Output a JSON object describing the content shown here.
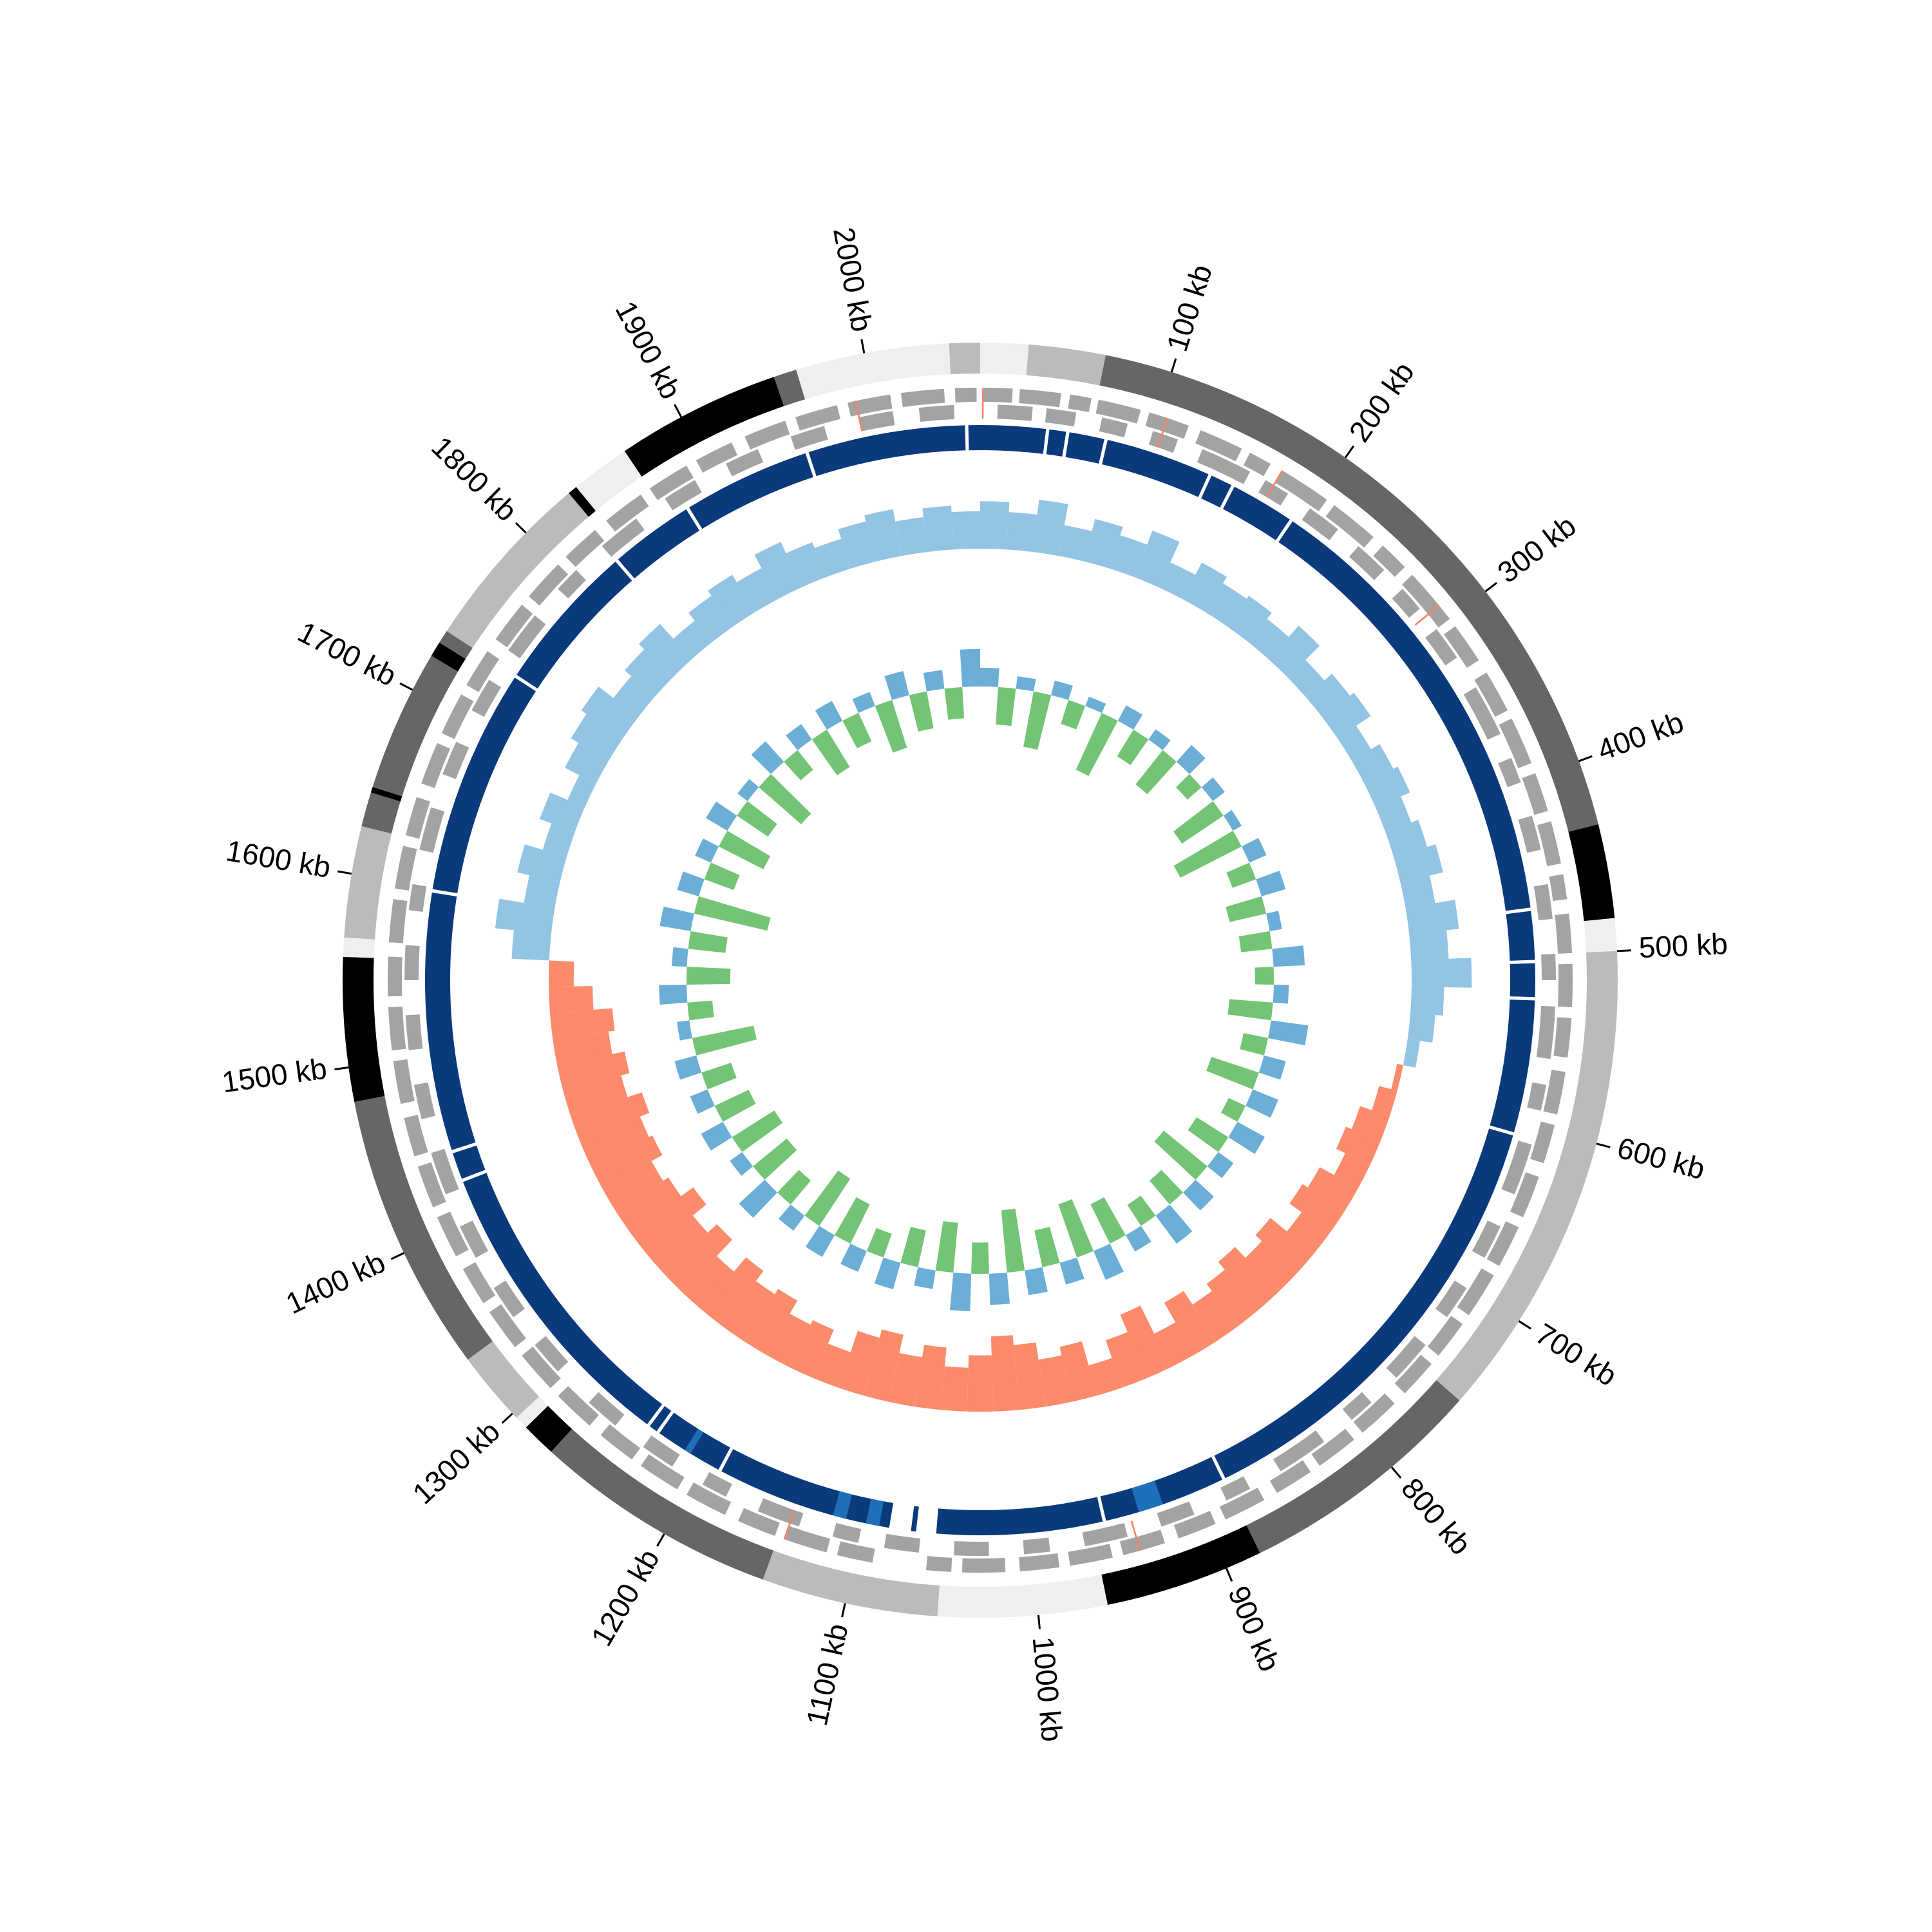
{
  "chart_data": {
    "type": "circos",
    "xlim": [
      0,
      2060
    ],
    "xticks": [
      {
        "value": 100,
        "label": "100 kb"
      },
      {
        "value": 200,
        "label": "200 kb"
      },
      {
        "value": 300,
        "label": "300 kb"
      },
      {
        "value": 400,
        "label": "400 kb"
      },
      {
        "value": 500,
        "label": "500 kb"
      },
      {
        "value": 600,
        "label": "600 kb"
      },
      {
        "value": 700,
        "label": "700 kb"
      },
      {
        "value": 800,
        "label": "800 kb"
      },
      {
        "value": 900,
        "label": "900 kb"
      },
      {
        "value": 1000,
        "label": "1000 kb"
      },
      {
        "value": 1100,
        "label": "1100 kb"
      },
      {
        "value": 1200,
        "label": "1200 kb"
      },
      {
        "value": 1300,
        "label": "1300 kb"
      },
      {
        "value": 1400,
        "label": "1400 kb"
      },
      {
        "value": 1500,
        "label": "1500 kb"
      },
      {
        "value": 1600,
        "label": "1600 kb"
      },
      {
        "value": 1700,
        "label": "1700 kb"
      },
      {
        "value": 1800,
        "label": "1800 kb"
      },
      {
        "value": 1900,
        "label": "1900 kb"
      },
      {
        "value": 2000,
        "label": "2000 kb"
      }
    ],
    "ideogram": [
      {
        "start": 0,
        "end": 25,
        "color": "#efefef"
      },
      {
        "start": 25,
        "end": 65,
        "color": "#bbbbbb"
      },
      {
        "start": 65,
        "end": 434,
        "color": "#666666"
      },
      {
        "start": 434,
        "end": 483,
        "color": "#000000"
      },
      {
        "start": 483,
        "end": 500,
        "color": "#efefef"
      },
      {
        "start": 500,
        "end": 751,
        "color": "#bbbbbb"
      },
      {
        "start": 751,
        "end": 881,
        "color": "#666666"
      },
      {
        "start": 881,
        "end": 964,
        "color": "#000000"
      },
      {
        "start": 964,
        "end": 1052,
        "color": "#efefef"
      },
      {
        "start": 1052,
        "end": 1144,
        "color": "#bbbbbb"
      },
      {
        "start": 1144,
        "end": 1272,
        "color": "#666666"
      },
      {
        "start": 1272,
        "end": 1290,
        "color": "#000000"
      },
      {
        "start": 1290,
        "end": 1297,
        "color": "#efefef"
      },
      {
        "start": 1297,
        "end": 1336,
        "color": "#bbbbbb"
      },
      {
        "start": 1336,
        "end": 1482,
        "color": "#666666"
      },
      {
        "start": 1482,
        "end": 1557,
        "color": "#000000"
      },
      {
        "start": 1557,
        "end": 1567,
        "color": "#efefef"
      },
      {
        "start": 1567,
        "end": 1625,
        "color": "#bbbbbb"
      },
      {
        "start": 1625,
        "end": 1643,
        "color": "#666666"
      },
      {
        "start": 1643,
        "end": 1646,
        "color": "#000000"
      },
      {
        "start": 1646,
        "end": 1720,
        "color": "#666666"
      },
      {
        "start": 1720,
        "end": 1728,
        "color": "#000000"
      },
      {
        "start": 1728,
        "end": 1735,
        "color": "#666666"
      },
      {
        "start": 1735,
        "end": 1830,
        "color": "#bbbbbb"
      },
      {
        "start": 1830,
        "end": 1835,
        "color": "#000000"
      },
      {
        "start": 1835,
        "end": 1866,
        "color": "#efefef"
      },
      {
        "start": 1866,
        "end": 1952,
        "color": "#000000"
      },
      {
        "start": 1952,
        "end": 1964,
        "color": "#666666"
      },
      {
        "start": 1964,
        "end": 2044,
        "color": "#efefef"
      },
      {
        "start": 2044,
        "end": 2060,
        "color": "#bbbbbb"
      }
    ],
    "genes_forward": {
      "color": "#a3a3a3",
      "blocks": [
        [
          2,
          18
        ],
        [
          22,
          45
        ],
        [
          50,
          62
        ],
        [
          66,
          90
        ],
        [
          95,
          118
        ],
        [
          125,
          150
        ],
        [
          155,
          168
        ],
        [
          175,
          205
        ],
        [
          210,
          238
        ],
        [
          245,
          262
        ],
        [
          268,
          300
        ],
        [
          305,
          328
        ],
        [
          336,
          360
        ],
        [
          365,
          392
        ],
        [
          398,
          420
        ],
        [
          426,
          450
        ],
        [
          456,
          470
        ],
        [
          478,
          500
        ],
        [
          506,
          530
        ],
        [
          536,
          558
        ],
        [
          566,
          590
        ],
        [
          596,
          618
        ],
        [
          626,
          650
        ],
        [
          656,
          680
        ],
        [
          686,
          712
        ],
        [
          718,
          740
        ],
        [
          746,
          768
        ],
        [
          776,
          800
        ],
        [
          806,
          830
        ],
        [
          836,
          858
        ],
        [
          866,
          890
        ],
        [
          896,
          918
        ],
        [
          926,
          950
        ],
        [
          956,
          980
        ],
        [
          986,
          1008
        ],
        [
          1016,
          1040
        ],
        [
          1046,
          1060
        ],
        [
          1090,
          1110
        ],
        [
          1116,
          1140
        ],
        [
          1146,
          1168
        ],
        [
          1176,
          1200
        ],
        [
          1206,
          1230
        ],
        [
          1236,
          1258
        ],
        [
          1266,
          1290
        ],
        [
          1296,
          1320
        ],
        [
          1326,
          1350
        ],
        [
          1356,
          1378
        ],
        [
          1386,
          1410
        ],
        [
          1416,
          1440
        ],
        [
          1446,
          1468
        ],
        [
          1476,
          1500
        ],
        [
          1506,
          1530
        ],
        [
          1536,
          1558
        ],
        [
          1566,
          1590
        ],
        [
          1596,
          1620
        ],
        [
          1626,
          1648
        ],
        [
          1656,
          1680
        ],
        [
          1686,
          1710
        ],
        [
          1716,
          1738
        ],
        [
          1746,
          1770
        ],
        [
          1776,
          1800
        ],
        [
          1806,
          1828
        ],
        [
          1836,
          1860
        ],
        [
          1866,
          1890
        ],
        [
          1896,
          1918
        ],
        [
          1926,
          1950
        ],
        [
          1956,
          1980
        ],
        [
          1986,
          2010
        ],
        [
          2016,
          2040
        ],
        [
          2046,
          2058
        ]
      ]
    },
    "genes_reverse": {
      "color": "#a3a3a3",
      "blocks": [
        [
          10,
          30
        ],
        [
          38,
          55
        ],
        [
          70,
          85
        ],
        [
          100,
          115
        ],
        [
          130,
          160
        ],
        [
          170,
          185
        ],
        [
          200,
          220
        ],
        [
          235,
          255
        ],
        [
          270,
          285
        ],
        [
          300,
          320
        ],
        [
          340,
          370
        ],
        [
          385,
          400
        ],
        [
          420,
          440
        ],
        [
          460,
          480
        ],
        [
          500,
          515
        ],
        [
          530,
          560
        ],
        [
          575,
          590
        ],
        [
          610,
          640
        ],
        [
          660,
          680
        ],
        [
          700,
          720
        ],
        [
          740,
          765
        ],
        [
          785,
          800
        ],
        [
          820,
          850
        ],
        [
          870,
          885
        ],
        [
          905,
          925
        ],
        [
          945,
          970
        ],
        [
          990,
          1005
        ],
        [
          1025,
          1045
        ],
        [
          1065,
          1085
        ],
        [
          1100,
          1115
        ],
        [
          1135,
          1160
        ],
        [
          1180,
          1195
        ],
        [
          1215,
          1235
        ],
        [
          1255,
          1275
        ],
        [
          1300,
          1320
        ],
        [
          1340,
          1360
        ],
        [
          1380,
          1400
        ],
        [
          1420,
          1445
        ],
        [
          1465,
          1485
        ],
        [
          1505,
          1525
        ],
        [
          1545,
          1565
        ],
        [
          1585,
          1600
        ],
        [
          1620,
          1645
        ],
        [
          1665,
          1685
        ],
        [
          1705,
          1725
        ],
        [
          1745,
          1770
        ],
        [
          1790,
          1805
        ],
        [
          1825,
          1850
        ],
        [
          1870,
          1890
        ],
        [
          1910,
          1930
        ],
        [
          1950,
          1970
        ],
        [
          1990,
          2010
        ],
        [
          2025,
          2045
        ]
      ]
    },
    "rna": {
      "color": "#f4846a",
      "blocks": [
        [
          1,
          2
        ],
        [
          105,
          106
        ],
        [
          175,
          176
        ],
        [
          290,
          291
        ],
        [
          940,
          941
        ],
        [
          1140,
          1141
        ],
        [
          1990,
          1991
        ]
      ]
    },
    "ring": {
      "color": "#0b3a7c",
      "blocks": [
        [
          0,
          39
        ],
        [
          41,
          51
        ],
        [
          53,
          74
        ],
        [
          76,
          139
        ],
        [
          141,
          154
        ],
        [
          156,
          194
        ],
        [
          196,
          472
        ],
        [
          474,
          503
        ],
        [
          505,
          525
        ],
        [
          527,
          606
        ],
        [
          608,
          880
        ],
        [
          882,
          955
        ],
        [
          957,
          1056
        ],
        [
          1068,
          1071
        ],
        [
          1084,
          1189
        ],
        [
          1191,
          1232
        ],
        [
          1234,
          1239
        ],
        [
          1241,
          1423
        ],
        [
          1425,
          1441
        ],
        [
          1443,
          1597
        ],
        [
          1599,
          1734
        ],
        [
          1736,
          1825
        ],
        [
          1827,
          1877
        ],
        [
          1879,
          1955
        ],
        [
          1957,
          2051
        ],
        [
          2053,
          2060
        ]
      ]
    },
    "ring_highlight": {
      "color": "#1f6fb8",
      "blocks": [
        [
          920,
          935
        ],
        [
          1090,
          1098
        ],
        [
          1110,
          1118
        ],
        [
          1210,
          1214
        ]
      ]
    },
    "gc_content": {
      "positive_color": "#93c4e4",
      "negative_color": "#fb8b6b",
      "ylim": [
        -70,
        50
      ],
      "values": [
        38,
        30,
        42,
        25,
        35,
        28,
        40,
        22,
        33,
        27,
        30,
        24,
        36,
        20,
        28,
        32,
        18,
        26,
        30,
        22,
        28,
        35,
        24,
        40,
        30,
        48,
        26,
        20,
        10,
        -5,
        -15,
        -25,
        -30,
        -22,
        -35,
        -40,
        -28,
        -45,
        -38,
        -50,
        -42,
        -35,
        -48,
        -30,
        -55,
        -40,
        -25,
        -45,
        -38,
        -52,
        -60,
        -45,
        -35,
        -50,
        -40,
        -55,
        -48,
        -30,
        -42,
        -38,
        -50,
        -45,
        -55,
        -40,
        -58,
        -48,
        -62,
        -50,
        -45,
        -55,
        -52,
        -60,
        -48,
        -55,
        -45,
        -50,
        -35,
        -20,
        30,
        45,
        25,
        35,
        20,
        30,
        15,
        28,
        35,
        40,
        25,
        32,
        38,
        22,
        30,
        35,
        28,
        40,
        30,
        25,
        33,
        38,
        28,
        35,
        30
      ]
    },
    "gc_skew": {
      "positive_color": "#6baed6",
      "negative_color": "#74c476",
      "ylim": [
        -70,
        50
      ],
      "values": [
        15,
        -30,
        10,
        -45,
        12,
        -20,
        8,
        -50,
        14,
        -25,
        10,
        -35,
        18,
        -15,
        12,
        -40,
        8,
        -55,
        15,
        -20,
        20,
        -30,
        10,
        -25,
        25,
        -15,
        12,
        -35,
        30,
        -20,
        18,
        -40,
        22,
        -15,
        25,
        -30,
        15,
        -45,
        20,
        -25,
        28,
        -20,
        15,
        -35,
        25,
        -45,
        18,
        -30,
        20,
        -50,
        25,
        -25,
        30,
        -40,
        15,
        -30,
        22,
        -20,
        18,
        -35,
        20,
        -45,
        15,
        -25,
        28,
        -35,
        12,
        -40,
        20,
        -30,
        15,
        -25,
        18,
        -50,
        10,
        -20,
        22,
        -35,
        12,
        -30,
        25,
        -60,
        18,
        -25,
        14,
        -40,
        20,
        -30,
        10,
        -45,
        22,
        -20,
        15,
        -35,
        18,
        -25,
        12,
        -40,
        20,
        -30,
        15,
        -25,
        30
      ]
    }
  }
}
